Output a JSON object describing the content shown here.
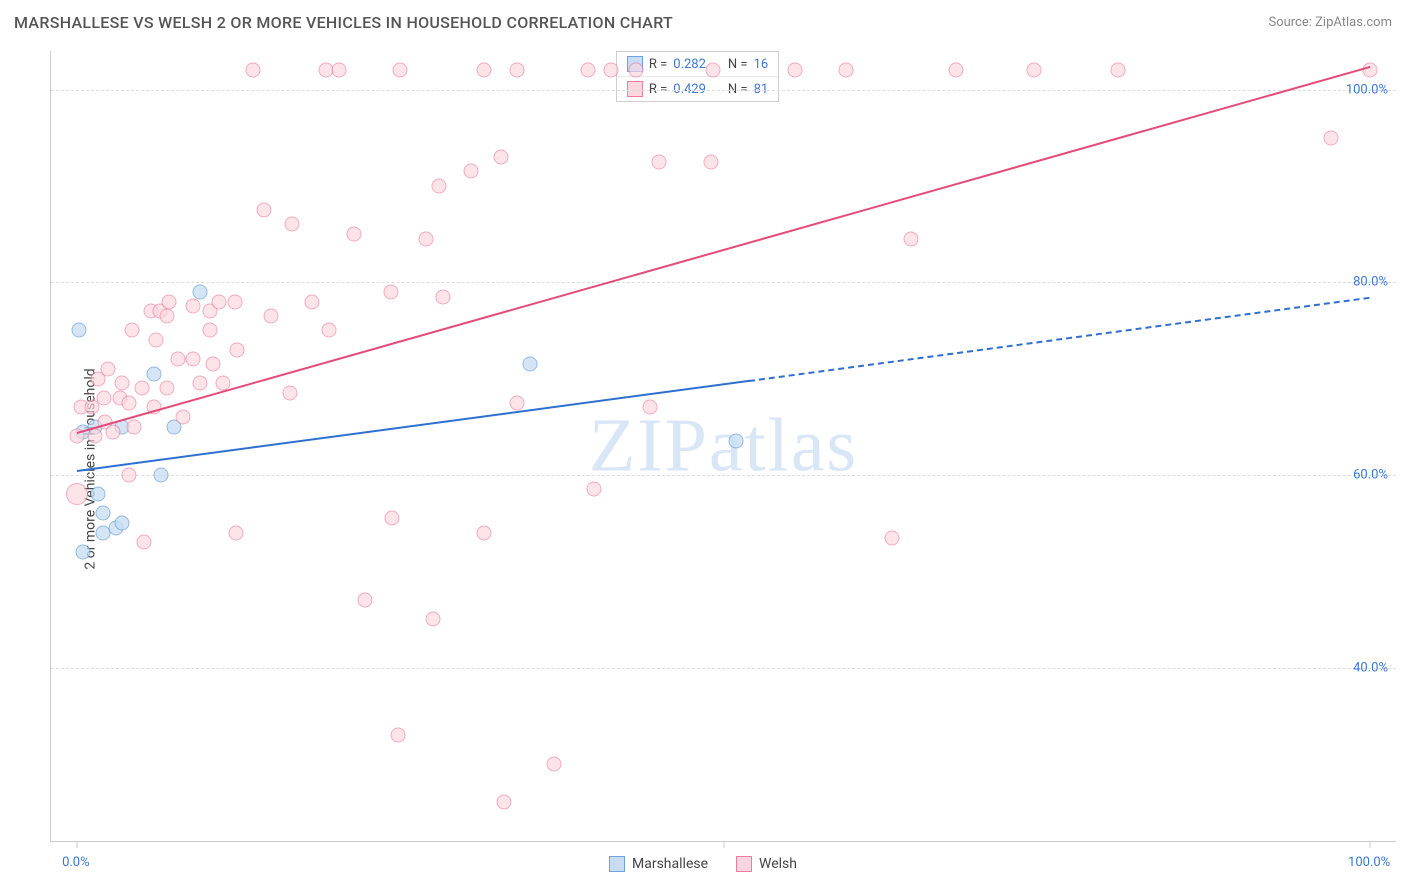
{
  "header": {
    "title": "MARSHALLESE VS WELSH 2 OR MORE VEHICLES IN HOUSEHOLD CORRELATION CHART",
    "source_label": "Source: ",
    "source_name": "ZipAtlas.com"
  },
  "watermark": {
    "zip": "ZIP",
    "atlas": "atlas",
    "color": "#d9e6f5"
  },
  "chart": {
    "type": "scatter",
    "ylabel": "2 or more Vehicles in Household",
    "background_color": "#ffffff",
    "grid_color": "#dddddd",
    "axis_color": "#cccccc",
    "ylim": [
      22,
      104
    ],
    "xlim": [
      -2,
      102
    ],
    "yticks": [
      {
        "v": 40,
        "label": "40.0%"
      },
      {
        "v": 60,
        "label": "60.0%"
      },
      {
        "v": 80,
        "label": "80.0%"
      },
      {
        "v": 100,
        "label": "100.0%"
      }
    ],
    "xticks": [
      {
        "v": 0,
        "label": "0.0%"
      },
      {
        "v": 50,
        "label": ""
      },
      {
        "v": 100,
        "label": "100.0%"
      }
    ],
    "tick_label_color": "#3b78d8",
    "tick_fontsize": 13,
    "label_fontsize": 14,
    "series": {
      "marshallese": {
        "label": "Marshallese",
        "fill_color": "#c8ddf3",
        "stroke_color": "#6ea3dd",
        "line_color": "#2f6fd0",
        "line_width": 2.5,
        "marker_size": 15,
        "marker_opacity": 0.75,
        "R": "0.282",
        "N": "16",
        "regression": {
          "x1": 0,
          "y1": 60.5,
          "x2": 100,
          "y2": 78.5,
          "solid_until_x": 52
        },
        "points": [
          {
            "x": 0.2,
            "y": 75
          },
          {
            "x": 0.5,
            "y": 64.5
          },
          {
            "x": 0.5,
            "y": 52
          },
          {
            "x": 1.4,
            "y": 65
          },
          {
            "x": 1.6,
            "y": 58
          },
          {
            "x": 2.0,
            "y": 56
          },
          {
            "x": 2.0,
            "y": 54
          },
          {
            "x": 3.0,
            "y": 54.5
          },
          {
            "x": 3.5,
            "y": 55
          },
          {
            "x": 3.5,
            "y": 65
          },
          {
            "x": 6.5,
            "y": 60
          },
          {
            "x": 6.0,
            "y": 70.5
          },
          {
            "x": 7.5,
            "y": 65
          },
          {
            "x": 9.5,
            "y": 79
          },
          {
            "x": 35.0,
            "y": 71.5
          },
          {
            "x": 51.0,
            "y": 63.5
          }
        ]
      },
      "welsh": {
        "label": "Welsh",
        "fill_color": "#fbd6de",
        "stroke_color": "#ec7d9c",
        "line_color": "#e34b78",
        "line_width": 2.5,
        "marker_size": 15,
        "marker_opacity": 0.65,
        "R": "0.429",
        "N": "81",
        "regression": {
          "x1": 0,
          "y1": 64.5,
          "x2": 100,
          "y2": 102.5,
          "solid_until_x": 100
        },
        "points": [
          {
            "x": 0,
            "y": 64
          },
          {
            "x": 0,
            "y": 58,
            "size": 22
          },
          {
            "x": 0.3,
            "y": 67
          },
          {
            "x": 1.2,
            "y": 67
          },
          {
            "x": 1.6,
            "y": 70
          },
          {
            "x": 1.4,
            "y": 64
          },
          {
            "x": 2.1,
            "y": 68
          },
          {
            "x": 2.2,
            "y": 65.5
          },
          {
            "x": 2.4,
            "y": 71
          },
          {
            "x": 2.8,
            "y": 64.5
          },
          {
            "x": 3.3,
            "y": 68
          },
          {
            "x": 3.5,
            "y": 69.5
          },
          {
            "x": 4.0,
            "y": 67.5
          },
          {
            "x": 4.0,
            "y": 60
          },
          {
            "x": 4.3,
            "y": 75
          },
          {
            "x": 4.4,
            "y": 65
          },
          {
            "x": 5.0,
            "y": 69
          },
          {
            "x": 5.7,
            "y": 77
          },
          {
            "x": 5.2,
            "y": 53
          },
          {
            "x": 6.1,
            "y": 74
          },
          {
            "x": 6.0,
            "y": 67
          },
          {
            "x": 6.4,
            "y": 77
          },
          {
            "x": 7.0,
            "y": 69
          },
          {
            "x": 7.0,
            "y": 76.5
          },
          {
            "x": 7.1,
            "y": 78
          },
          {
            "x": 7.8,
            "y": 72
          },
          {
            "x": 8.2,
            "y": 66
          },
          {
            "x": 9.0,
            "y": 72
          },
          {
            "x": 9.0,
            "y": 77.5
          },
          {
            "x": 9.5,
            "y": 69.5
          },
          {
            "x": 10.3,
            "y": 75
          },
          {
            "x": 10.3,
            "y": 77
          },
          {
            "x": 10.5,
            "y": 71.5
          },
          {
            "x": 11.0,
            "y": 78
          },
          {
            "x": 11.3,
            "y": 69.5
          },
          {
            "x": 12.2,
            "y": 78
          },
          {
            "x": 12.4,
            "y": 73
          },
          {
            "x": 12.3,
            "y": 54
          },
          {
            "x": 13.6,
            "y": 102
          },
          {
            "x": 14.5,
            "y": 87.5
          },
          {
            "x": 15.0,
            "y": 76.5
          },
          {
            "x": 16.5,
            "y": 68.5
          },
          {
            "x": 16.6,
            "y": 86
          },
          {
            "x": 18.2,
            "y": 78
          },
          {
            "x": 19.3,
            "y": 102
          },
          {
            "x": 19.5,
            "y": 75
          },
          {
            "x": 20.3,
            "y": 102
          },
          {
            "x": 21.4,
            "y": 85
          },
          {
            "x": 22.3,
            "y": 47
          },
          {
            "x": 24.3,
            "y": 79
          },
          {
            "x": 24.4,
            "y": 55.5
          },
          {
            "x": 24.8,
            "y": 33
          },
          {
            "x": 25.0,
            "y": 102
          },
          {
            "x": 27.0,
            "y": 84.5
          },
          {
            "x": 27.5,
            "y": 45
          },
          {
            "x": 28.0,
            "y": 90
          },
          {
            "x": 28.3,
            "y": 78.5
          },
          {
            "x": 30.5,
            "y": 91.5
          },
          {
            "x": 31.5,
            "y": 54
          },
          {
            "x": 31.5,
            "y": 102
          },
          {
            "x": 32.8,
            "y": 93
          },
          {
            "x": 33.0,
            "y": 26
          },
          {
            "x": 34.0,
            "y": 102
          },
          {
            "x": 34.0,
            "y": 67.5
          },
          {
            "x": 36.9,
            "y": 30
          },
          {
            "x": 39.5,
            "y": 102
          },
          {
            "x": 40.0,
            "y": 58.5
          },
          {
            "x": 41.3,
            "y": 102
          },
          {
            "x": 43.2,
            "y": 102
          },
          {
            "x": 44.3,
            "y": 67
          },
          {
            "x": 45.0,
            "y": 92.5
          },
          {
            "x": 49.0,
            "y": 92.5
          },
          {
            "x": 49.2,
            "y": 102
          },
          {
            "x": 55.5,
            "y": 102
          },
          {
            "x": 59.5,
            "y": 102
          },
          {
            "x": 63.0,
            "y": 53.5
          },
          {
            "x": 64.5,
            "y": 84.5
          },
          {
            "x": 68.0,
            "y": 102
          },
          {
            "x": 74.0,
            "y": 102
          },
          {
            "x": 80.5,
            "y": 102
          },
          {
            "x": 97.0,
            "y": 95
          },
          {
            "x": 100,
            "y": 102
          }
        ]
      }
    },
    "bottom_legend": [
      {
        "series": "marshallese"
      },
      {
        "series": "welsh"
      }
    ]
  },
  "corr_legend": {
    "r_label": "R = ",
    "n_label": "N = ",
    "rows": [
      "marshallese",
      "welsh"
    ]
  }
}
